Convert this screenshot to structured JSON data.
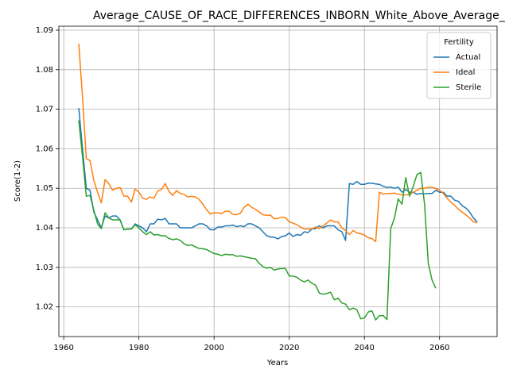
{
  "chart_data": {
    "type": "line",
    "title": "Average_CAUSE_OF_RACE_DIFFERENCES_INBORN_White_Above_Average_",
    "x_label": "Years",
    "y_label": "Score(1-2)",
    "legend_title": "Fertility",
    "legend": "upper right",
    "grid": true,
    "xlim": [
      1958.7,
      2075.3
    ],
    "xticks": [
      1960,
      1980,
      2000,
      2020,
      2040,
      2060
    ],
    "ylim": [
      1.0125,
      1.091
    ],
    "yticks": [
      1.02,
      1.03,
      1.04,
      1.05,
      1.06,
      1.07,
      1.08,
      1.09
    ],
    "x": [
      1964,
      1965,
      1966,
      1967,
      1968,
      1969,
      1970,
      1971,
      1972,
      1973,
      1974,
      1975,
      1976,
      1977,
      1978,
      1979,
      1980,
      1981,
      1982,
      1983,
      1984,
      1985,
      1986,
      1987,
      1988,
      1989,
      1990,
      1991,
      1992,
      1993,
      1994,
      1995,
      1996,
      1997,
      1998,
      1999,
      2000,
      2001,
      2002,
      2003,
      2004,
      2005,
      2006,
      2007,
      2008,
      2009,
      2010,
      2011,
      2012,
      2013,
      2014,
      2015,
      2016,
      2017,
      2018,
      2019,
      2020,
      2021,
      2022,
      2023,
      2024,
      2025,
      2026,
      2027,
      2028,
      2029,
      2030,
      2031,
      2032,
      2033,
      2034,
      2035,
      2036,
      2037,
      2038,
      2039,
      2040,
      2041,
      2042,
      2043,
      2044,
      2045,
      2046,
      2047,
      2048,
      2049,
      2050,
      2051,
      2052,
      2053,
      2054,
      2055,
      2056,
      2057,
      2058,
      2059,
      2060,
      2061,
      2062,
      2063,
      2064,
      2065,
      2066,
      2067,
      2068,
      2069,
      2070
    ],
    "series": [
      {
        "name": "Actual",
        "color": "#1f77b4",
        "values": [
          1.0703,
          1.06,
          1.05,
          1.0495,
          1.044,
          1.042,
          1.04,
          1.043,
          1.0425,
          1.043,
          1.043,
          1.042,
          1.0395,
          1.0397,
          1.0397,
          1.041,
          1.0405,
          1.04,
          1.039,
          1.041,
          1.041,
          1.0422,
          1.042,
          1.0424,
          1.041,
          1.041,
          1.041,
          1.04,
          1.04,
          1.04,
          1.04,
          1.0405,
          1.041,
          1.041,
          1.0405,
          1.0395,
          1.0395,
          1.0402,
          1.0402,
          1.0405,
          1.0405,
          1.0407,
          1.0403,
          1.0405,
          1.0403,
          1.041,
          1.041,
          1.0405,
          1.04,
          1.039,
          1.038,
          1.0377,
          1.0376,
          1.0372,
          1.0378,
          1.038,
          1.0387,
          1.0378,
          1.0383,
          1.0381,
          1.039,
          1.0388,
          1.0397,
          1.0398,
          1.0405,
          1.04,
          1.0405,
          1.0405,
          1.0405,
          1.0395,
          1.039,
          1.0368,
          1.0512,
          1.051,
          1.0517,
          1.051,
          1.051,
          1.0513,
          1.0513,
          1.0511,
          1.051,
          1.0505,
          1.0502,
          1.0503,
          1.05,
          1.0503,
          1.049,
          1.0497,
          1.049,
          1.049,
          1.0485,
          1.0487,
          1.0486,
          1.0487,
          1.0487,
          1.0495,
          1.049,
          1.049,
          1.048,
          1.048,
          1.047,
          1.0467,
          1.0456,
          1.045,
          1.044,
          1.0425,
          1.0415
        ]
      },
      {
        "name": "Ideal",
        "color": "#ff7f0e",
        "values": [
          1.0866,
          1.073,
          1.0575,
          1.057,
          1.052,
          1.049,
          1.0463,
          1.0522,
          1.0512,
          1.0495,
          1.05,
          1.0502,
          1.048,
          1.048,
          1.0465,
          1.0498,
          1.049,
          1.0475,
          1.0472,
          1.0478,
          1.0475,
          1.0493,
          1.0497,
          1.0512,
          1.0492,
          1.0482,
          1.0494,
          1.0487,
          1.0485,
          1.0478,
          1.048,
          1.0478,
          1.0472,
          1.046,
          1.0446,
          1.0435,
          1.0438,
          1.0438,
          1.0436,
          1.0442,
          1.0442,
          1.0434,
          1.0433,
          1.0437,
          1.0452,
          1.046,
          1.0452,
          1.0447,
          1.044,
          1.0433,
          1.0432,
          1.0432,
          1.0423,
          1.0424,
          1.0427,
          1.0426,
          1.0415,
          1.0412,
          1.0408,
          1.0402,
          1.0397,
          1.0397,
          1.0397,
          1.0402,
          1.0398,
          1.0405,
          1.0412,
          1.042,
          1.0415,
          1.0415,
          1.04,
          1.0393,
          1.0383,
          1.0393,
          1.0387,
          1.0385,
          1.0382,
          1.0375,
          1.0373,
          1.0365,
          1.049,
          1.0485,
          1.0487,
          1.0487,
          1.0488,
          1.0485,
          1.0483,
          1.0483,
          1.0485,
          1.049,
          1.0495,
          1.05,
          1.05,
          1.0503,
          1.0502,
          1.05,
          1.0495,
          1.0487,
          1.0475,
          1.0465,
          1.0457,
          1.0447,
          1.044,
          1.0433,
          1.0425,
          1.0415,
          1.0413
        ]
      },
      {
        "name": "Sterile",
        "color": "#2ca02c",
        "values": [
          1.0672,
          1.058,
          1.048,
          1.0482,
          1.0445,
          1.041,
          1.0398,
          1.0438,
          1.0425,
          1.042,
          1.042,
          1.042,
          1.0395,
          1.0397,
          1.0397,
          1.0408,
          1.04,
          1.039,
          1.0383,
          1.039,
          1.0382,
          1.0383,
          1.038,
          1.038,
          1.0373,
          1.037,
          1.0372,
          1.0368,
          1.036,
          1.0355,
          1.0357,
          1.0352,
          1.0348,
          1.0347,
          1.0345,
          1.034,
          1.0335,
          1.0333,
          1.033,
          1.0333,
          1.0332,
          1.0332,
          1.0328,
          1.0329,
          1.0327,
          1.0325,
          1.0323,
          1.0322,
          1.031,
          1.0302,
          1.0298,
          1.03,
          1.0293,
          1.0296,
          1.0297,
          1.0297,
          1.0278,
          1.0278,
          1.0275,
          1.0268,
          1.0263,
          1.0268,
          1.026,
          1.0255,
          1.0235,
          1.0232,
          1.0234,
          1.0237,
          1.0218,
          1.0222,
          1.021,
          1.0207,
          1.0193,
          1.0197,
          1.0193,
          1.017,
          1.0172,
          1.0187,
          1.019,
          1.0167,
          1.0178,
          1.0178,
          1.0168,
          1.0398,
          1.0425,
          1.0473,
          1.046,
          1.0527,
          1.048,
          1.0505,
          1.0535,
          1.054,
          1.046,
          1.031,
          1.0268,
          1.0247,
          null,
          null,
          null,
          null,
          null,
          null,
          null,
          null,
          null,
          null,
          null
        ]
      }
    ]
  }
}
